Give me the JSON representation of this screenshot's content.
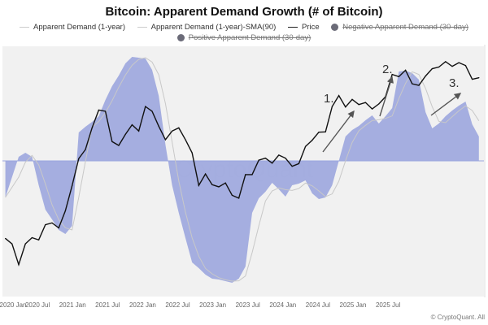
{
  "chart_data": {
    "type": "area",
    "title": "Bitcoin: Apparent Demand Growth (# of Bitcoin)",
    "legend": [
      {
        "label": "Apparent Demand (1-year)",
        "hidden": false
      },
      {
        "label": "Apparent Demand (1-year)-SMA(90)",
        "hidden": false
      },
      {
        "label": "Price",
        "hidden": false
      },
      {
        "label": "Negative Apparent Demand (30-day)",
        "hidden": true
      },
      {
        "label": "Positive Apparent Demand (30-day)",
        "hidden": true
      }
    ],
    "legend_placement": "top",
    "x_tick_labels": [
      "2020 Jan",
      "2020 Jul",
      "2021 Jan",
      "2021 Jul",
      "2022 Jan",
      "2022 Jul",
      "2023 Jan",
      "2023 Jul",
      "2024 Jan",
      "2024 Jul",
      "2025 Jan",
      "2025 Jul"
    ],
    "x": [
      "2020-01",
      "2020-02",
      "2020-03",
      "2020-04",
      "2020-05",
      "2020-06",
      "2020-07",
      "2020-08",
      "2020-09",
      "2020-10",
      "2020-11",
      "2020-12",
      "2021-01",
      "2021-02",
      "2021-03",
      "2021-04",
      "2021-05",
      "2021-06",
      "2021-07",
      "2021-08",
      "2021-09",
      "2021-10",
      "2021-11",
      "2021-12",
      "2022-01",
      "2022-02",
      "2022-03",
      "2022-04",
      "2022-05",
      "2022-06",
      "2022-07",
      "2022-08",
      "2022-09",
      "2022-10",
      "2022-11",
      "2022-12",
      "2023-01",
      "2023-02",
      "2023-03",
      "2023-04",
      "2023-05",
      "2023-06",
      "2023-07",
      "2023-08",
      "2023-09",
      "2023-10",
      "2023-11",
      "2023-12",
      "2024-01",
      "2024-02",
      "2024-03",
      "2024-04",
      "2024-05",
      "2024-06",
      "2024-07",
      "2024-08",
      "2024-09",
      "2024-10",
      "2024-11",
      "2024-12",
      "2025-01",
      "2025-02",
      "2025-03",
      "2025-04",
      "2025-05",
      "2025-06",
      "2025-07",
      "2025-08",
      "2025-09",
      "2025-10",
      "2025-11",
      "2025-12"
    ],
    "series": [
      {
        "name": "Apparent Demand (1-year)",
        "type": "area",
        "color": "#9ca6de",
        "values": [
          -45,
          -20,
          5,
          10,
          5,
          -30,
          -60,
          -72,
          -85,
          -90,
          -80,
          35,
          42,
          48,
          55,
          75,
          92,
          105,
          120,
          128,
          127,
          126,
          112,
          80,
          20,
          -30,
          -64,
          -95,
          -125,
          -132,
          -140,
          -145,
          -146,
          -148,
          -150,
          -145,
          -130,
          -64,
          -46,
          -38,
          -27,
          -35,
          -44,
          -30,
          -28,
          -24,
          -40,
          -47,
          -45,
          -30,
          0,
          30,
          38,
          43,
          50,
          56,
          46,
          55,
          65,
          110,
          111,
          108,
          100,
          60,
          40,
          46,
          55,
          62,
          68,
          73,
          45,
          30
        ]
      },
      {
        "name": "Apparent Demand (1-year)-SMA(90)",
        "type": "line",
        "color": "#c8c8c8"
      },
      {
        "name": "Price",
        "type": "line",
        "color": "#111111",
        "scale": "log",
        "values": [
          9300,
          8600,
          6400,
          8600,
          9400,
          9100,
          11300,
          11600,
          10800,
          13800,
          19700,
          29000,
          33000,
          45000,
          58000,
          57000,
          37000,
          35000,
          41000,
          47000,
          43000,
          61000,
          57000,
          46000,
          38000,
          43000,
          45000,
          38000,
          31500,
          19800,
          23300,
          20000,
          19400,
          20500,
          17200,
          16500,
          23100,
          23100,
          28400,
          29200,
          27200,
          30500,
          29200,
          26000,
          27000,
          34500,
          37700,
          42300,
          42500,
          61000,
          71300,
          60600,
          67500,
          62700,
          64600,
          58900,
          63300,
          70200,
          96400,
          93400,
          102400,
          84300,
          82500,
          94200,
          104600,
          107100,
          115700,
          108200,
          114000,
          109500,
          90000,
          92000
        ]
      }
    ],
    "annotations": [
      {
        "text": "1.",
        "at": "2024-03"
      },
      {
        "text": "2.",
        "at": "2024-11"
      },
      {
        "text": "3.",
        "at": "2025-08"
      }
    ],
    "grid": true,
    "watermark": "CryptoQuant"
  },
  "footer": "© CryptoQuant. All"
}
